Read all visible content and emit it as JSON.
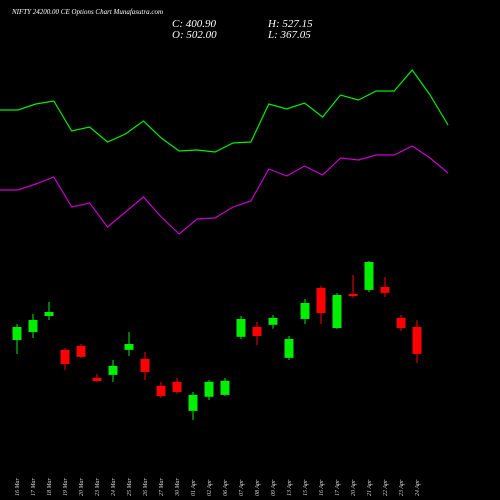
{
  "header": {
    "title": "NIFTY 24200.00 CE Options Chart Munafasutra.com",
    "close": "C: 400.90",
    "high": "H: 527.15",
    "open": "O: 502.00",
    "low": "L: 367.05"
  },
  "chart_data": {
    "type": "candlestick",
    "categories": [
      "16 Mar",
      "17 Mar",
      "18 Mar",
      "19 Mar",
      "20 Mar",
      "23 Mar",
      "24 Mar",
      "25 Mar",
      "26 Mar",
      "27 Mar",
      "30 Mar",
      "01 Apr",
      "02 Apr",
      "06 Apr",
      "07 Apr",
      "08 Apr",
      "09 Apr",
      "13 Apr",
      "15 Apr",
      "16 Apr",
      "17 Apr",
      "20 Apr",
      "21 Apr",
      "22 Apr",
      "23 Apr",
      "24 Apr"
    ],
    "open": [
      453,
      483,
      543,
      416,
      431,
      311,
      322,
      416,
      382,
      281,
      296,
      187,
      240,
      247,
      465,
      502,
      510,
      386,
      532,
      648,
      498,
      626,
      641,
      652,
      536,
      502
    ],
    "high": [
      513,
      551,
      596,
      423,
      438,
      326,
      378,
      483,
      408,
      296,
      311,
      258,
      303,
      311,
      543,
      521,
      547,
      468,
      607,
      656,
      629,
      697,
      750,
      690,
      547,
      527.15
    ],
    "low": [
      401,
      461,
      528,
      341,
      386,
      296,
      296,
      393,
      303,
      236,
      251,
      153,
      228,
      243,
      457,
      434,
      495,
      378,
      513,
      513,
      494,
      611,
      633,
      615,
      487,
      367.05
    ],
    "close": [
      502,
      528,
      558,
      363,
      390,
      299,
      356,
      438,
      333,
      243,
      258,
      247,
      296,
      300,
      532,
      468,
      536,
      457,
      592,
      554,
      622,
      618,
      746,
      630,
      498,
      400.9
    ],
    "up_color": "#00ee00",
    "down_color": "#ff0000",
    "ylim": [
      134,
      772
    ],
    "lines": [
      {
        "color": "#00ee00",
        "values": [
          390,
          390,
          396,
          399,
          369,
          373,
          358,
          366,
          379,
          362,
          349,
          350,
          348,
          357,
          358,
          396,
          391,
          397,
          383,
          405,
          400,
          409,
          409,
          430,
          405,
          375
        ]
      },
      {
        "color": "#cc00cc",
        "values": [
          310,
          310,
          316,
          323,
          293,
          297,
          273,
          288,
          303,
          283,
          266,
          281,
          282,
          293,
          299,
          331,
          324,
          334,
          325,
          342,
          340,
          345,
          345,
          354,
          342,
          327
        ]
      }
    ],
    "line_ylim": [
      0,
      500
    ]
  }
}
